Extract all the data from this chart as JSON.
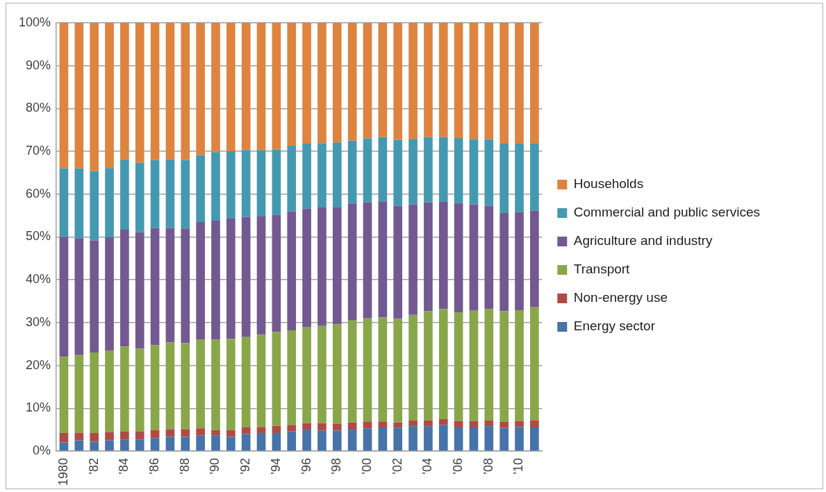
{
  "chart_data": {
    "type": "bar",
    "stacked": true,
    "categories": [
      "1980",
      null,
      "'82",
      null,
      "'84",
      null,
      "'86",
      null,
      "'88",
      null,
      "'90",
      null,
      "'92",
      null,
      "'94",
      null,
      "'96",
      null,
      "'98",
      null,
      "'00",
      null,
      "'02",
      null,
      "'04",
      null,
      "'06",
      null,
      "'08",
      null,
      "'10",
      null
    ],
    "series": [
      {
        "name": "Energy sector",
        "color": "#4673a8",
        "values": [
          2.0,
          2.5,
          2.2,
          2.5,
          2.7,
          2.7,
          3.0,
          3.3,
          3.3,
          3.6,
          3.6,
          3.3,
          4.0,
          4.2,
          4.2,
          4.6,
          5.0,
          4.8,
          4.8,
          5.0,
          5.3,
          5.5,
          5.4,
          5.8,
          5.8,
          6.1,
          5.5,
          5.5,
          5.8,
          5.4,
          5.6,
          5.5
        ]
      },
      {
        "name": "Non-energy use",
        "color": "#b04a45",
        "values": [
          2.2,
          1.8,
          2.0,
          1.9,
          1.9,
          1.9,
          1.9,
          1.8,
          1.8,
          1.7,
          1.3,
          1.6,
          1.5,
          1.4,
          1.7,
          1.5,
          1.5,
          1.7,
          1.6,
          1.7,
          1.6,
          1.4,
          1.3,
          1.4,
          1.4,
          1.4,
          1.5,
          1.5,
          1.4,
          1.4,
          1.4,
          1.7
        ]
      },
      {
        "name": "Transport",
        "color": "#8aa64a",
        "values": [
          17.8,
          18.1,
          18.8,
          19.1,
          19.8,
          19.3,
          19.8,
          20.3,
          20.1,
          20.8,
          21.1,
          21.3,
          21.1,
          21.6,
          21.9,
          22.1,
          22.5,
          22.7,
          23.2,
          23.8,
          24.1,
          24.3,
          24.2,
          24.6,
          25.5,
          25.7,
          25.4,
          25.9,
          26.0,
          25.9,
          25.9,
          26.4
        ]
      },
      {
        "name": "Agriculture and industry",
        "color": "#725990",
        "values": [
          28.0,
          27.3,
          26.2,
          26.4,
          27.3,
          27.2,
          27.4,
          26.7,
          26.8,
          27.4,
          27.8,
          28.2,
          28.1,
          27.7,
          27.4,
          27.8,
          27.6,
          27.7,
          27.4,
          27.3,
          27.1,
          27.1,
          26.4,
          25.8,
          25.4,
          25.1,
          25.5,
          24.7,
          24.1,
          22.9,
          22.9,
          22.5
        ]
      },
      {
        "name": "Commercial and public services",
        "color": "#4499b0",
        "values": [
          16.0,
          16.3,
          16.2,
          16.2,
          16.4,
          16.2,
          15.9,
          16.0,
          16.0,
          15.6,
          16.0,
          15.6,
          15.6,
          15.4,
          15.2,
          15.3,
          15.2,
          15.0,
          15.1,
          14.7,
          14.9,
          15.0,
          15.4,
          15.3,
          15.2,
          15.0,
          15.2,
          15.2,
          15.5,
          16.2,
          16.0,
          15.7
        ]
      },
      {
        "name": "Households",
        "color": "#dd8440",
        "values": [
          34.0,
          34.0,
          34.6,
          33.9,
          31.9,
          32.7,
          32.0,
          31.9,
          32.0,
          30.9,
          30.2,
          30.0,
          29.7,
          29.7,
          29.6,
          28.7,
          28.2,
          28.1,
          27.9,
          27.5,
          27.0,
          26.7,
          27.3,
          27.1,
          26.7,
          26.7,
          26.9,
          27.2,
          27.2,
          28.2,
          28.2,
          28.2
        ]
      }
    ],
    "ylim": [
      0,
      100
    ],
    "yticks": [
      {
        "value": 0,
        "label": "0%"
      },
      {
        "value": 10,
        "label": "10%"
      },
      {
        "value": 20,
        "label": "20%"
      },
      {
        "value": 30,
        "label": "30%"
      },
      {
        "value": 40,
        "label": "40%"
      },
      {
        "value": 50,
        "label": "50%"
      },
      {
        "value": 60,
        "label": "60%"
      },
      {
        "value": 70,
        "label": "70%"
      },
      {
        "value": 80,
        "label": "80%"
      },
      {
        "value": 90,
        "label": "90%"
      },
      {
        "value": 100,
        "label": "100%"
      }
    ],
    "grid": "y",
    "legend": "right"
  }
}
